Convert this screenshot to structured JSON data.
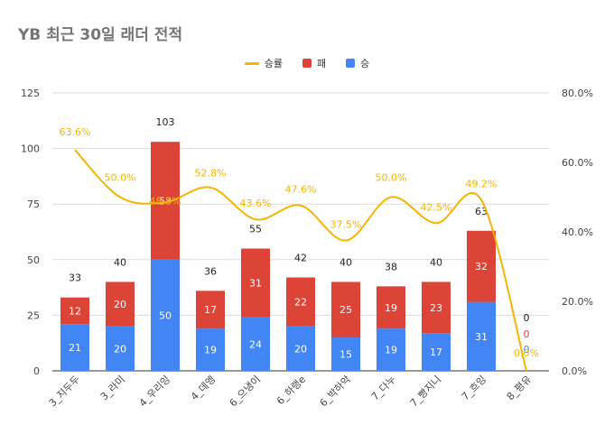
{
  "chart_data": {
    "type": "bar",
    "stacked": true,
    "title": "YB 최근 30일 래더 전적",
    "categories": [
      "3_지두두",
      "3_라미",
      "4_우리잉",
      "4_데엥",
      "6_으냉이",
      "6_하랭e",
      "6_박하악",
      "7_다누",
      "7_빵지니",
      "7_흐잉",
      "8_평유"
    ],
    "series": [
      {
        "name": "승",
        "color": "#4285f4",
        "values": [
          21,
          20,
          50,
          19,
          24,
          20,
          15,
          19,
          17,
          31,
          0
        ]
      },
      {
        "name": "패",
        "color": "#db4437",
        "values": [
          12,
          20,
          53,
          17,
          31,
          22,
          25,
          19,
          23,
          32,
          0
        ]
      }
    ],
    "totals": [
      33,
      40,
      103,
      36,
      55,
      42,
      40,
      38,
      40,
      63,
      0
    ],
    "line_series": {
      "name": "승률",
      "color": "#f4b400",
      "axis": "right",
      "values": [
        63.6,
        50.0,
        48.5,
        52.8,
        43.6,
        47.6,
        37.5,
        50.0,
        42.5,
        49.2,
        0.0
      ],
      "labels": [
        "63.6%",
        "50.0%",
        "48.5%",
        "52.8%",
        "43.6%",
        "47.6%",
        "37.5%",
        "50.0%",
        "42.5%",
        "49.2%",
        "0.0%"
      ]
    },
    "y_left": {
      "min": 0,
      "max": 125,
      "ticks": [
        "0",
        "25",
        "50",
        "75",
        "100",
        "125"
      ]
    },
    "y_right": {
      "min": 0,
      "max": 80,
      "ticks": [
        "0.0%",
        "20.0%",
        "40.0%",
        "60.0%",
        "80.0%"
      ]
    },
    "legend": {
      "position": "top",
      "items": [
        "승률",
        "패",
        "승"
      ]
    },
    "grid": true
  }
}
